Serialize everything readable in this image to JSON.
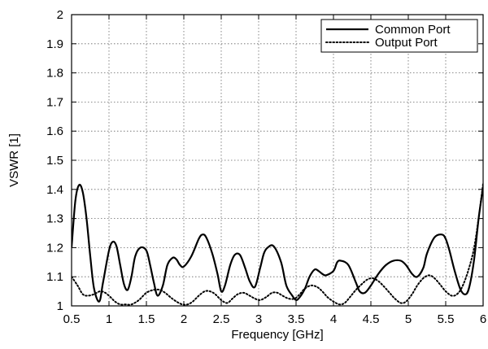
{
  "chart_data": {
    "type": "line",
    "title": "",
    "xlabel": "Frequency [GHz]",
    "ylabel": "VSWR [1]",
    "xlim": [
      0.5,
      6
    ],
    "ylim": [
      1,
      2
    ],
    "xticks": [
      "0.5",
      "1",
      "1.5",
      "2",
      "2.5",
      "3",
      "3.5",
      "4",
      "4.5",
      "5",
      "5.5",
      "6"
    ],
    "yticks": [
      "1",
      "1.1",
      "1.2",
      "1.3",
      "1.4",
      "1.5",
      "1.6",
      "1.7",
      "1.8",
      "1.9",
      "2"
    ],
    "grid": true,
    "legend_position": "top-right",
    "series": [
      {
        "name": "Common Port",
        "style": "solid",
        "color": "#000000",
        "x": [
          0.5,
          0.55,
          0.6,
          0.65,
          0.7,
          0.75,
          0.8,
          0.87,
          0.92,
          1.0,
          1.05,
          1.1,
          1.15,
          1.2,
          1.25,
          1.3,
          1.35,
          1.42,
          1.5,
          1.55,
          1.6,
          1.65,
          1.72,
          1.78,
          1.85,
          1.9,
          1.95,
          2.0,
          2.1,
          2.2,
          2.25,
          2.3,
          2.38,
          2.45,
          2.5,
          2.55,
          2.62,
          2.68,
          2.75,
          2.82,
          2.88,
          2.95,
          3.02,
          3.07,
          3.12,
          3.2,
          3.3,
          3.37,
          3.45,
          3.5,
          3.55,
          3.62,
          3.68,
          3.75,
          3.8,
          3.85,
          3.9,
          4.0,
          4.05,
          4.1,
          4.2,
          4.3,
          4.35,
          4.42,
          4.5,
          4.6,
          4.7,
          4.8,
          4.9,
          4.97,
          5.05,
          5.12,
          5.2,
          5.25,
          5.35,
          5.45,
          5.5,
          5.55,
          5.62,
          5.7,
          5.77,
          5.82,
          5.88,
          5.94,
          6.0
        ],
        "y": [
          1.2,
          1.36,
          1.415,
          1.39,
          1.3,
          1.17,
          1.06,
          1.015,
          1.08,
          1.19,
          1.22,
          1.205,
          1.14,
          1.075,
          1.055,
          1.1,
          1.17,
          1.2,
          1.19,
          1.14,
          1.08,
          1.035,
          1.07,
          1.14,
          1.165,
          1.16,
          1.14,
          1.135,
          1.17,
          1.23,
          1.245,
          1.235,
          1.18,
          1.11,
          1.05,
          1.07,
          1.14,
          1.175,
          1.175,
          1.13,
          1.085,
          1.065,
          1.13,
          1.18,
          1.2,
          1.205,
          1.15,
          1.07,
          1.035,
          1.02,
          1.03,
          1.06,
          1.1,
          1.125,
          1.12,
          1.11,
          1.105,
          1.12,
          1.15,
          1.155,
          1.14,
          1.08,
          1.05,
          1.045,
          1.07,
          1.11,
          1.14,
          1.155,
          1.155,
          1.14,
          1.11,
          1.1,
          1.13,
          1.18,
          1.235,
          1.245,
          1.23,
          1.19,
          1.12,
          1.055,
          1.04,
          1.07,
          1.16,
          1.3,
          1.41
        ]
      },
      {
        "name": "Output Port",
        "style": "dotted",
        "color": "#000000",
        "x": [
          0.5,
          0.58,
          0.65,
          0.72,
          0.8,
          0.88,
          0.95,
          1.02,
          1.08,
          1.15,
          1.22,
          1.3,
          1.4,
          1.5,
          1.6,
          1.68,
          1.75,
          1.82,
          1.9,
          1.98,
          2.05,
          2.12,
          2.2,
          2.28,
          2.35,
          2.42,
          2.5,
          2.58,
          2.65,
          2.72,
          2.8,
          2.88,
          2.95,
          3.02,
          3.1,
          3.18,
          3.25,
          3.32,
          3.4,
          3.48,
          3.55,
          3.62,
          3.7,
          3.78,
          3.85,
          3.92,
          4.0,
          4.08,
          4.15,
          4.22,
          4.3,
          4.38,
          4.45,
          4.52,
          4.6,
          4.68,
          4.75,
          4.82,
          4.9,
          4.97,
          5.05,
          5.12,
          5.2,
          5.28,
          5.35,
          5.42,
          5.5,
          5.58,
          5.65,
          5.72,
          5.8,
          5.88,
          5.95,
          6.0
        ],
        "y": [
          1.1,
          1.07,
          1.04,
          1.035,
          1.04,
          1.05,
          1.045,
          1.03,
          1.015,
          1.005,
          1.005,
          1.005,
          1.02,
          1.045,
          1.055,
          1.055,
          1.045,
          1.03,
          1.015,
          1.005,
          1.005,
          1.015,
          1.035,
          1.05,
          1.05,
          1.04,
          1.02,
          1.01,
          1.025,
          1.04,
          1.045,
          1.035,
          1.025,
          1.02,
          1.03,
          1.045,
          1.045,
          1.035,
          1.025,
          1.025,
          1.04,
          1.06,
          1.07,
          1.065,
          1.05,
          1.03,
          1.015,
          1.005,
          1.01,
          1.03,
          1.055,
          1.075,
          1.09,
          1.095,
          1.085,
          1.065,
          1.045,
          1.025,
          1.01,
          1.015,
          1.04,
          1.07,
          1.095,
          1.105,
          1.095,
          1.075,
          1.05,
          1.035,
          1.04,
          1.065,
          1.12,
          1.2,
          1.32,
          1.42
        ]
      }
    ]
  }
}
